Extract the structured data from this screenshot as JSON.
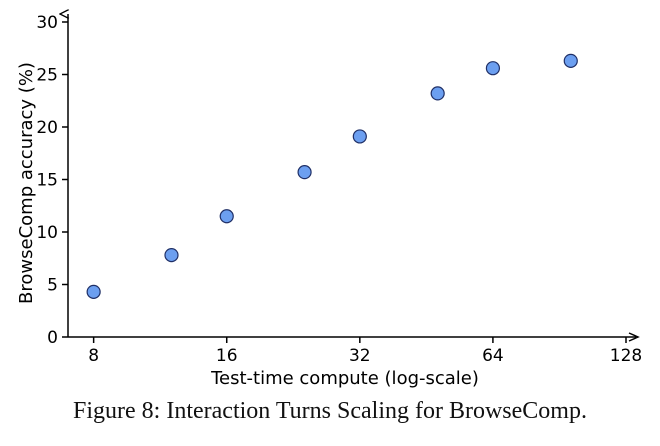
{
  "chart_data": {
    "type": "scatter",
    "title": "",
    "xlabel": "Test-time compute (log-scale)",
    "ylabel": "BrowseComp accuracy (%)",
    "x_scale": "log2",
    "xlim": [
      7,
      128
    ],
    "ylim": [
      0,
      30
    ],
    "x_ticks": [
      8,
      16,
      32,
      64,
      128
    ],
    "y_ticks": [
      0,
      5,
      10,
      15,
      20,
      25,
      30
    ],
    "grid": false,
    "marker_color": "#6c9ff0",
    "marker_edge_color": "#1f2f66",
    "points": [
      {
        "x": 8,
        "y": 4.3
      },
      {
        "x": 12,
        "y": 7.8
      },
      {
        "x": 16,
        "y": 11.5
      },
      {
        "x": 24,
        "y": 15.7
      },
      {
        "x": 32,
        "y": 19.1
      },
      {
        "x": 48,
        "y": 23.2
      },
      {
        "x": 64,
        "y": 25.6
      },
      {
        "x": 96,
        "y": 26.3
      }
    ]
  },
  "caption": "Figure 8: Interaction Turns Scaling for BrowseComp."
}
